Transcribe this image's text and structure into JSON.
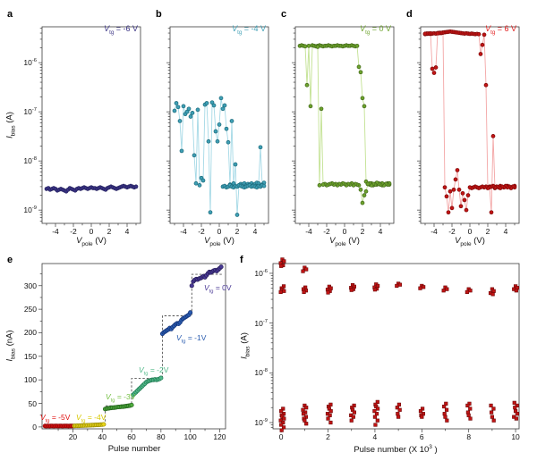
{
  "figure": {
    "panel_letters": {
      "a": "a",
      "b": "b",
      "c": "c",
      "d": "d",
      "e": "e",
      "f": "f"
    }
  },
  "labels": {
    "ibias_A": {
      "v": "I",
      "s": "bias",
      "r": " (A)"
    },
    "ibias_nA": {
      "v": "I",
      "s": "bias",
      "r": " (nA)"
    },
    "vpole": {
      "v": "V",
      "s": "pole",
      "r": " (V)"
    },
    "pulse": "Pulse number",
    "pulse_f": {
      "pre": "Pulse number (X 10",
      "sup": "3",
      "post": " )"
    }
  },
  "chart_data": [
    {
      "id": "a",
      "type": "scatter",
      "letter": "a",
      "xlabel": "V_pole (V)",
      "ylabel": "I_bias (A)",
      "x_ticks": [
        -4,
        -2,
        0,
        2,
        4
      ],
      "x_minor": [
        -5,
        -3,
        -1,
        1,
        3,
        5
      ],
      "y_scale": "log",
      "y_ticks_exp": [
        -9,
        -8,
        -7,
        -6
      ],
      "xlim": [
        -5.5,
        5.5
      ],
      "ylim_exp": [
        -9.27,
        -5.27
      ],
      "annotation": {
        "v": "V",
        "s": "tg",
        "r": " = -6 V"
      },
      "color": "#3a3384",
      "edge": "#23205e",
      "line_color": "#6f68ab",
      "color_label": "#3a3384",
      "series": [
        {
          "x0": -5,
          "dx": 0.2,
          "y": [
            2.7e-09,
            2.8e-09,
            2.6e-09,
            2.7e-09,
            2.8e-09,
            2.7e-09,
            2.5e-09,
            2.6e-09,
            2.7e-09,
            2.6e-09,
            2.5e-09,
            2.4e-09,
            2.6e-09,
            2.8e-09,
            2.7e-09,
            2.6e-09,
            2.5e-09,
            2.7e-09,
            2.8e-09,
            2.7e-09,
            2.8e-09,
            2.9e-09,
            2.8e-09,
            2.7e-09,
            2.8e-09,
            2.9e-09,
            2.8e-09,
            2.8e-09,
            2.7e-09,
            2.8e-09,
            2.9e-09,
            2.8e-09,
            2.7e-09,
            2.6e-09,
            2.8e-09,
            2.9e-09,
            3e-09,
            2.9e-09,
            2.8e-09,
            2.7e-09,
            2.8e-09,
            2.9e-09,
            3e-09,
            3.1e-09,
            3e-09,
            2.9e-09,
            3e-09,
            3.1e-09,
            3e-09,
            2.9e-09,
            3e-09
          ]
        }
      ]
    },
    {
      "id": "b",
      "type": "scatter",
      "letter": "b",
      "xlabel": "V_pole (V)",
      "ylabel": "I_bias (A)",
      "x_ticks": [
        -4,
        -2,
        0,
        2,
        4
      ],
      "x_minor": [
        -5,
        -3,
        -1,
        1,
        3,
        5
      ],
      "y_scale": "log",
      "y_ticks_exp": [
        -9,
        -8,
        -7,
        -6
      ],
      "xlim": [
        -5.5,
        5.5
      ],
      "ylim_exp": [
        -9.27,
        -5.27
      ],
      "annotation": {
        "v": "V",
        "s": "tg",
        "r": " = -4 V"
      },
      "color": "#3f9fb5",
      "edge": "#1c6a7a",
      "line_color": "#a5d9e6",
      "color_label": "#3f9fb5",
      "series": [
        {
          "x0": -5,
          "dx": 0.2,
          "y": [
            1.05e-07,
            1.5e-07,
            1.25e-07,
            6.5e-08,
            1.6e-08,
            1.3e-07,
            9e-08,
            1e-07,
            1.15e-07,
            8e-08,
            9.5e-08,
            1.3e-08,
            3.5e-09,
            1.1e-07,
            3.2e-09,
            4.5e-09,
            4e-09,
            1.4e-07,
            1.5e-07,
            2.5e-08,
            9e-10,
            1.55e-07,
            1.35e-07,
            4e-08,
            2.5e-08,
            5.5e-08,
            1.9e-07,
            1.15e-07,
            1.35e-07,
            4.5e-08,
            2.4e-08,
            3.3e-09,
            6.5e-08,
            3.5e-09,
            8.5e-09,
            8e-10,
            3.2e-09,
            3.4e-09,
            3.3e-09,
            3.5e-09,
            3.2e-09,
            3.4e-09,
            3.3e-09,
            3.5e-09,
            3.2e-09,
            3.4e-09,
            3.6e-09,
            3.5e-09,
            1.9e-08,
            3.3e-09,
            3.6e-09
          ]
        },
        {
          "x0": 0.4,
          "dx": 0.2,
          "y": [
            3e-09,
            3.1e-09,
            2.9e-09,
            3e-09,
            3.2e-09,
            3e-09,
            2.9e-09,
            3.1e-09,
            3e-09,
            3.2e-09,
            3.1e-09,
            3e-09,
            2.9e-09,
            3e-09,
            3.1e-09,
            3.2e-09,
            3e-09,
            3.1e-09,
            3e-09,
            2.9e-09,
            3.1e-09,
            3e-09,
            3.2e-09,
            3.1e-09
          ]
        }
      ]
    },
    {
      "id": "c",
      "type": "scatter",
      "letter": "c",
      "xlabel": "V_pole (V)",
      "ylabel": "I_bias (A)",
      "x_ticks": [
        -4,
        -2,
        0,
        2,
        4
      ],
      "x_minor": [
        -5,
        -3,
        -1,
        1,
        3,
        5
      ],
      "y_scale": "log",
      "y_ticks_exp": [
        -9,
        -8,
        -7,
        -6
      ],
      "xlim": [
        -5.5,
        5.5
      ],
      "ylim_exp": [
        -9.27,
        -5.27
      ],
      "annotation": {
        "v": "V",
        "s": "tg",
        "r": " = 0 V"
      },
      "color": "#6da32c",
      "edge": "#41661a",
      "line_color": "#c3e293",
      "color_label": "#6da32c",
      "series": [
        {
          "x0": -5,
          "dx": 0.2,
          "y": [
            2.2e-06,
            2.25e-06,
            2.2e-06,
            2.15e-06,
            3.5e-07,
            2.2e-06,
            1.3e-07,
            2.25e-06,
            2.2e-06,
            2.15e-06,
            2.2e-06,
            2.25e-06,
            2.2e-06,
            2.15e-06,
            2.2e-06,
            2.2e-06,
            2.25e-06,
            2.2e-06,
            2.15e-06,
            2.2e-06,
            2.2e-06,
            2.25e-06,
            2.2e-06,
            2.2e-06,
            2.15e-06,
            2.2e-06,
            2.25e-06,
            2.2e-06,
            2.2e-06,
            2.25e-06,
            2.2e-06,
            2.15e-06,
            2.2e-06,
            8.2e-07,
            6.4e-07,
            1.9e-07,
            1.3e-07,
            3.8e-09,
            3.4e-09,
            3.3e-09,
            3.5e-09,
            3.2e-09,
            3.4e-09,
            3.3e-09,
            3.5e-09,
            3.4e-09,
            3.2e-09,
            3.3e-09,
            3.4e-09,
            3.5e-09,
            3.3e-09
          ]
        },
        {
          "x0": 5.0,
          "dx": -0.2,
          "y": [
            3.5e-09,
            3.3e-09,
            3.4e-09,
            3.2e-09,
            3.5e-09,
            3.3e-09,
            3.4e-09,
            3.6e-09,
            3.3e-09,
            3.4e-09,
            3.2e-09,
            3.5e-09,
            3.4e-09,
            2.4e-09,
            2e-09,
            1.4e-09,
            2.6e-09,
            3.2e-09,
            3.3e-09,
            3.4e-09,
            3.2e-09,
            3.5e-09,
            3.3e-09,
            3.4e-09,
            3.2e-09,
            3.4e-09,
            3.5e-09,
            3.3e-09,
            3.4e-09,
            3.2e-09,
            3.4e-09,
            3.3e-09,
            3.5e-09,
            3.4e-09,
            3.3e-09,
            3.2e-09,
            3.4e-09,
            3.3e-09,
            1.15e-07,
            3.2e-09,
            2.1e-06
          ]
        }
      ]
    },
    {
      "id": "d",
      "type": "scatter",
      "letter": "d",
      "xlabel": "V_pole (V)",
      "ylabel": "I_bias (A)",
      "x_ticks": [
        -4,
        -2,
        0,
        2,
        4
      ],
      "x_minor": [
        -5,
        -3,
        -1,
        1,
        3,
        5
      ],
      "y_scale": "log",
      "y_ticks_exp": [
        -9,
        -8,
        -7,
        -6
      ],
      "xlim": [
        -5.5,
        5.5
      ],
      "ylim_exp": [
        -9.27,
        -5.27
      ],
      "annotation": {
        "v": "V",
        "s": "tg",
        "r": " = 6 V"
      },
      "color": "#c11414",
      "edge": "#7e0909",
      "line_color": "#f3a6a6",
      "color_label": "#e11d1d",
      "series": [
        {
          "x0": -5,
          "dx": 0.2,
          "y": [
            3.8e-06,
            3.85e-06,
            3.9e-06,
            3.85e-06,
            3.9e-06,
            3.95e-06,
            3.9e-06,
            4e-06,
            4.05e-06,
            4e-06,
            4.1e-06,
            4.15e-06,
            4.2e-06,
            4.25e-06,
            4.3e-06,
            4.25e-06,
            4.2e-06,
            4.15e-06,
            4.1e-06,
            4.05e-06,
            4e-06,
            3.95e-06,
            3.9e-06,
            3.95e-06,
            3.9e-06,
            3.85e-06,
            3.9e-06,
            3.85e-06,
            3.8e-06,
            3.85e-06,
            3.8e-06,
            1.5e-06,
            2.3e-06,
            3.7e-06,
            3.5e-07,
            2.9e-09,
            3e-09,
            9e-10,
            3.2e-08,
            2.8e-09,
            3e-09,
            2.9e-09,
            3.1e-09,
            3e-09,
            2.9e-09,
            3e-09,
            3.1e-09,
            3e-09,
            2.9e-09,
            3e-09,
            3.1e-09
          ]
        },
        {
          "x0": 5.0,
          "dx": -0.2,
          "y": [
            2.9e-09,
            3e-09,
            2.8e-09,
            3e-09,
            2.9e-09,
            3.1e-09,
            2.9e-09,
            3e-09,
            2.8e-09,
            2.9e-09,
            3e-09,
            2.9e-09,
            3.1e-09,
            3e-09,
            2.9e-09,
            2.8e-09,
            3e-09,
            2.9e-09,
            3e-09,
            2.9e-09,
            2.8e-09,
            2.9e-09,
            3e-09,
            2.9e-09,
            2.8e-09,
            2.9e-09,
            2e-09,
            1e-09,
            1.6e-09,
            2.2e-09,
            1.2e-09,
            2.6e-09,
            6.5e-09,
            4.2e-09,
            2.6e-09,
            1.1e-09,
            2.4e-09,
            9e-10,
            1.9e-09,
            2.9e-09,
            4.1e-06,
            4.05e-06,
            4e-06,
            3.95e-06,
            8e-07,
            6.2e-07,
            7.5e-07,
            3.95e-06,
            3.9e-06,
            3.92e-06,
            3.88e-06
          ]
        }
      ]
    },
    {
      "id": "e",
      "type": "scatter",
      "letter": "e",
      "xlabel": "Pulse number",
      "ylabel": "I_bias (nA)",
      "x_ticks": [
        20,
        40,
        60,
        80,
        100,
        120
      ],
      "x_minor": [
        10,
        30,
        50,
        70,
        90,
        110
      ],
      "y_scale": "linear",
      "y_ticks": [
        0,
        50,
        100,
        150,
        200,
        250,
        300
      ],
      "y_minor": [
        25,
        75,
        125,
        175,
        225,
        275,
        325
      ],
      "xlim": [
        -1,
        124
      ],
      "ylim": [
        -4,
        347
      ],
      "dashed_path": [
        [
          1,
          2.5
        ],
        [
          42,
          2.5
        ],
        [
          42,
          45
        ],
        [
          60,
          45
        ],
        [
          60,
          103
        ],
        [
          81,
          103
        ],
        [
          81,
          236
        ],
        [
          101,
          236
        ],
        [
          101,
          324
        ],
        [
          122,
          324
        ]
      ],
      "segments": [
        {
          "label": {
            "v": "V",
            "s": "tg",
            "r": " = -5V"
          },
          "label_color": "#e01010",
          "color": "#d91111",
          "edge": "#8a0606",
          "x0": 1,
          "dx": 1,
          "y": [
            2.0,
            1.8,
            2.0,
            1.9,
            2.0,
            2.1,
            1.9,
            2.0,
            2.0,
            1.9,
            2.1,
            2.0,
            1.9,
            2.0,
            2.1,
            2.0,
            1.9,
            2.0,
            2.0,
            2.1
          ]
        },
        {
          "label": {
            "v": "V",
            "s": "tg",
            "r": " = -4V"
          },
          "label_color": "#d8c800",
          "color": "#e8d51c",
          "edge": "#9a8c00",
          "x0": 21,
          "dx": 1,
          "y": [
            2.2,
            2.4,
            2.5,
            2.6,
            2.8,
            3.0,
            3.0,
            3.2,
            3.3,
            3.5,
            3.6,
            3.8,
            4.0,
            4.0,
            4.2,
            4.4,
            4.5,
            4.6,
            4.8,
            5.0,
            5.5
          ]
        },
        {
          "label": {
            "v": "V",
            "s": "tg",
            "r": " = -3V"
          },
          "label_color": "#76c045",
          "color": "#4fae3e",
          "edge": "#215f1a",
          "x0": 42,
          "dx": 1,
          "y": [
            38,
            39,
            39.5,
            40,
            40.5,
            41,
            41,
            41.5,
            42,
            42.5,
            42.5,
            43,
            43,
            43.5,
            44,
            44.5,
            45,
            45.5,
            46.5
          ]
        },
        {
          "label": {
            "v": "V",
            "s": "tg",
            "r": " = -2V"
          },
          "label_color": "#52b98a",
          "color": "#52b98a",
          "edge": "#1f7a52",
          "x0": 61,
          "dx": 1,
          "y": [
            68,
            71,
            74,
            77,
            80,
            83,
            86,
            89,
            92,
            95,
            97,
            98,
            99,
            100,
            100,
            101,
            100,
            101,
            102,
            104
          ]
        },
        {
          "label": {
            "v": "V",
            "s": "tg",
            "r": " = -1V"
          },
          "label_color": "#2a5caf",
          "color": "#2a5caf",
          "edge": "#122f73",
          "x0": 81,
          "dx": 1,
          "y": [
            198,
            201,
            203,
            205,
            207,
            210,
            208,
            212,
            215,
            218,
            220,
            219,
            222,
            227,
            230,
            232,
            234,
            236,
            238,
            243
          ]
        },
        {
          "label": {
            "v": "V",
            "s": "tg",
            "r": " = 0V"
          },
          "label_color": "#4a3a96",
          "color": "#4a3a96",
          "edge": "#241a55",
          "x0": 101,
          "dx": 1,
          "y": [
            300,
            309,
            312,
            314,
            313,
            315,
            316,
            318,
            320,
            318,
            322,
            326,
            329,
            328,
            330,
            332,
            333,
            331,
            334,
            337,
            340
          ]
        }
      ]
    },
    {
      "id": "f",
      "type": "scatter",
      "letter": "f",
      "xlabel": "Pulse number (X 10^3)",
      "ylabel": "I_bias (A)",
      "x_ticks": [
        0,
        2,
        4,
        6,
        8,
        10
      ],
      "x_minor": [
        1,
        3,
        5,
        7,
        9
      ],
      "y_scale": "log",
      "y_ticks_exp": [
        -9,
        -8,
        -7,
        -6
      ],
      "xlim": [
        -0.35,
        10.15
      ],
      "ylim_exp": [
        -9.126,
        -5.804
      ],
      "color": "#c11414",
      "edge": "#6e0808",
      "clusters": [
        {
          "x": 0.05,
          "y": [
            1.9e-06,
            1.75e-06,
            1.6e-06,
            1.45e-06,
            1.4e-06,
            5.5e-07,
            5e-07,
            4.7e-07,
            4.4e-07,
            4.2e-07,
            1.9e-09,
            1.7e-09,
            1.5e-09,
            1.4e-09,
            1.3e-09,
            1.2e-09,
            1.1e-09,
            1e-09,
            9e-10,
            8e-10,
            7e-10
          ]
        },
        {
          "x": 1.0,
          "y": [
            1.3e-06,
            1.2e-06,
            1.1e-06,
            5.2e-07,
            4.8e-07,
            4.5e-07,
            4.2e-07,
            2.2e-09,
            2e-09,
            1.8e-09,
            1.6e-09,
            1.5e-09,
            1.3e-09,
            1.2e-09,
            1.1e-09,
            9.5e-10
          ]
        },
        {
          "x": 2.05,
          "y": [
            5.4e-07,
            5e-07,
            4.7e-07,
            4.4e-07,
            4.1e-07,
            2.3e-09,
            2.1e-09,
            1.9e-09,
            1.7e-09,
            1.5e-09,
            1.4e-09,
            1.2e-09,
            1e-09
          ]
        },
        {
          "x": 3.05,
          "y": [
            5.8e-07,
            5.4e-07,
            5.1e-07,
            4.8e-07,
            4.6e-07,
            2.2e-09,
            2e-09,
            1.8e-09,
            1.6e-09,
            1.4e-09,
            1.3e-09,
            1.1e-09
          ]
        },
        {
          "x": 4.05,
          "y": [
            6e-07,
            5.6e-07,
            5.2e-07,
            4.9e-07,
            4.7e-07,
            2.6e-09,
            2.3e-09,
            2.1e-09,
            1.9e-09,
            1.7e-09,
            1.5e-09,
            1.3e-09,
            1.1e-09,
            9e-10
          ]
        },
        {
          "x": 5.0,
          "y": [
            6.2e-07,
            5.9e-07,
            5.6e-07,
            2.3e-09,
            2e-09,
            1.8e-09,
            1.5e-09,
            1.3e-09
          ]
        },
        {
          "x": 6.0,
          "y": [
            5.6e-07,
            5.3e-07,
            5e-07,
            1.9e-09,
            1.7e-09,
            1.5e-09,
            1.4e-09,
            1.3e-09
          ]
        },
        {
          "x": 7.0,
          "y": [
            5.2e-07,
            4.8e-07,
            4.5e-07,
            2.4e-09,
            2.1e-09,
            1.8e-09,
            1.5e-09,
            1.3e-09,
            1.1e-09
          ]
        },
        {
          "x": 8.0,
          "y": [
            4.8e-07,
            4.5e-07,
            4.2e-07,
            2.4e-09,
            2.2e-09,
            1.9e-09,
            1.6e-09,
            1.4e-09,
            1.2e-09
          ]
        },
        {
          "x": 9.0,
          "y": [
            4.8e-07,
            4.4e-07,
            4e-07,
            3.8e-07,
            2.2e-09,
            1.9e-09,
            1.6e-09,
            1.3e-09,
            1.1e-09
          ]
        },
        {
          "x": 10.0,
          "y": [
            5.5e-07,
            5.1e-07,
            4.8e-07,
            4.5e-07,
            2.5e-09,
            2.2e-09,
            2e-09,
            1.7e-09,
            1.5e-09,
            1.3e-09,
            1.2e-09
          ]
        }
      ]
    }
  ]
}
